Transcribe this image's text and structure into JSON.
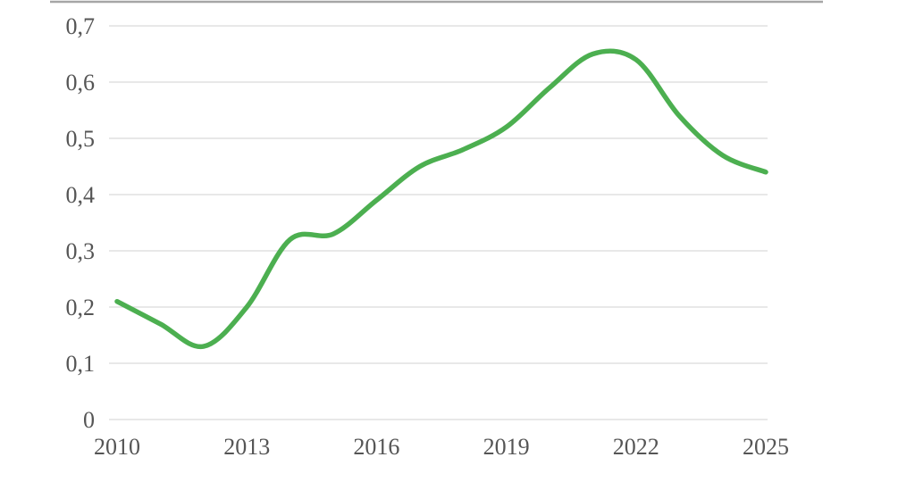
{
  "chart_data": {
    "type": "line",
    "title": "",
    "xlabel": "",
    "ylabel": "",
    "x": [
      2010,
      2011,
      2012,
      2013,
      2014,
      2015,
      2016,
      2017,
      2018,
      2019,
      2020,
      2021,
      2022,
      2023,
      2024,
      2025
    ],
    "series": [
      {
        "name": "",
        "values": [
          0.21,
          0.17,
          0.13,
          0.2,
          0.32,
          0.33,
          0.39,
          0.45,
          0.48,
          0.52,
          0.59,
          0.65,
          0.64,
          0.54,
          0.47,
          0.44
        ]
      }
    ],
    "xlim": [
      2010,
      2025
    ],
    "ylim": [
      0,
      0.7
    ],
    "x_ticks": [
      2010,
      2013,
      2016,
      2019,
      2022,
      2025
    ],
    "x_tick_labels": [
      "2010",
      "2013",
      "2016",
      "2019",
      "2022",
      "2025"
    ],
    "y_ticks": [
      0,
      0.1,
      0.2,
      0.3,
      0.4,
      0.5,
      0.6,
      0.7
    ],
    "y_tick_labels": [
      "0",
      "0,1",
      "0,2",
      "0,3",
      "0,4",
      "0,5",
      "0,6",
      "0,7"
    ],
    "decimal_separator": ",",
    "grid": true,
    "legend": "none",
    "smoothed": true,
    "colors": {
      "line": "#4caf50",
      "gridline": "#d9d9d9",
      "tick_label": "#555555",
      "top_border": "#a6a6a6",
      "background": "#ffffff"
    }
  }
}
